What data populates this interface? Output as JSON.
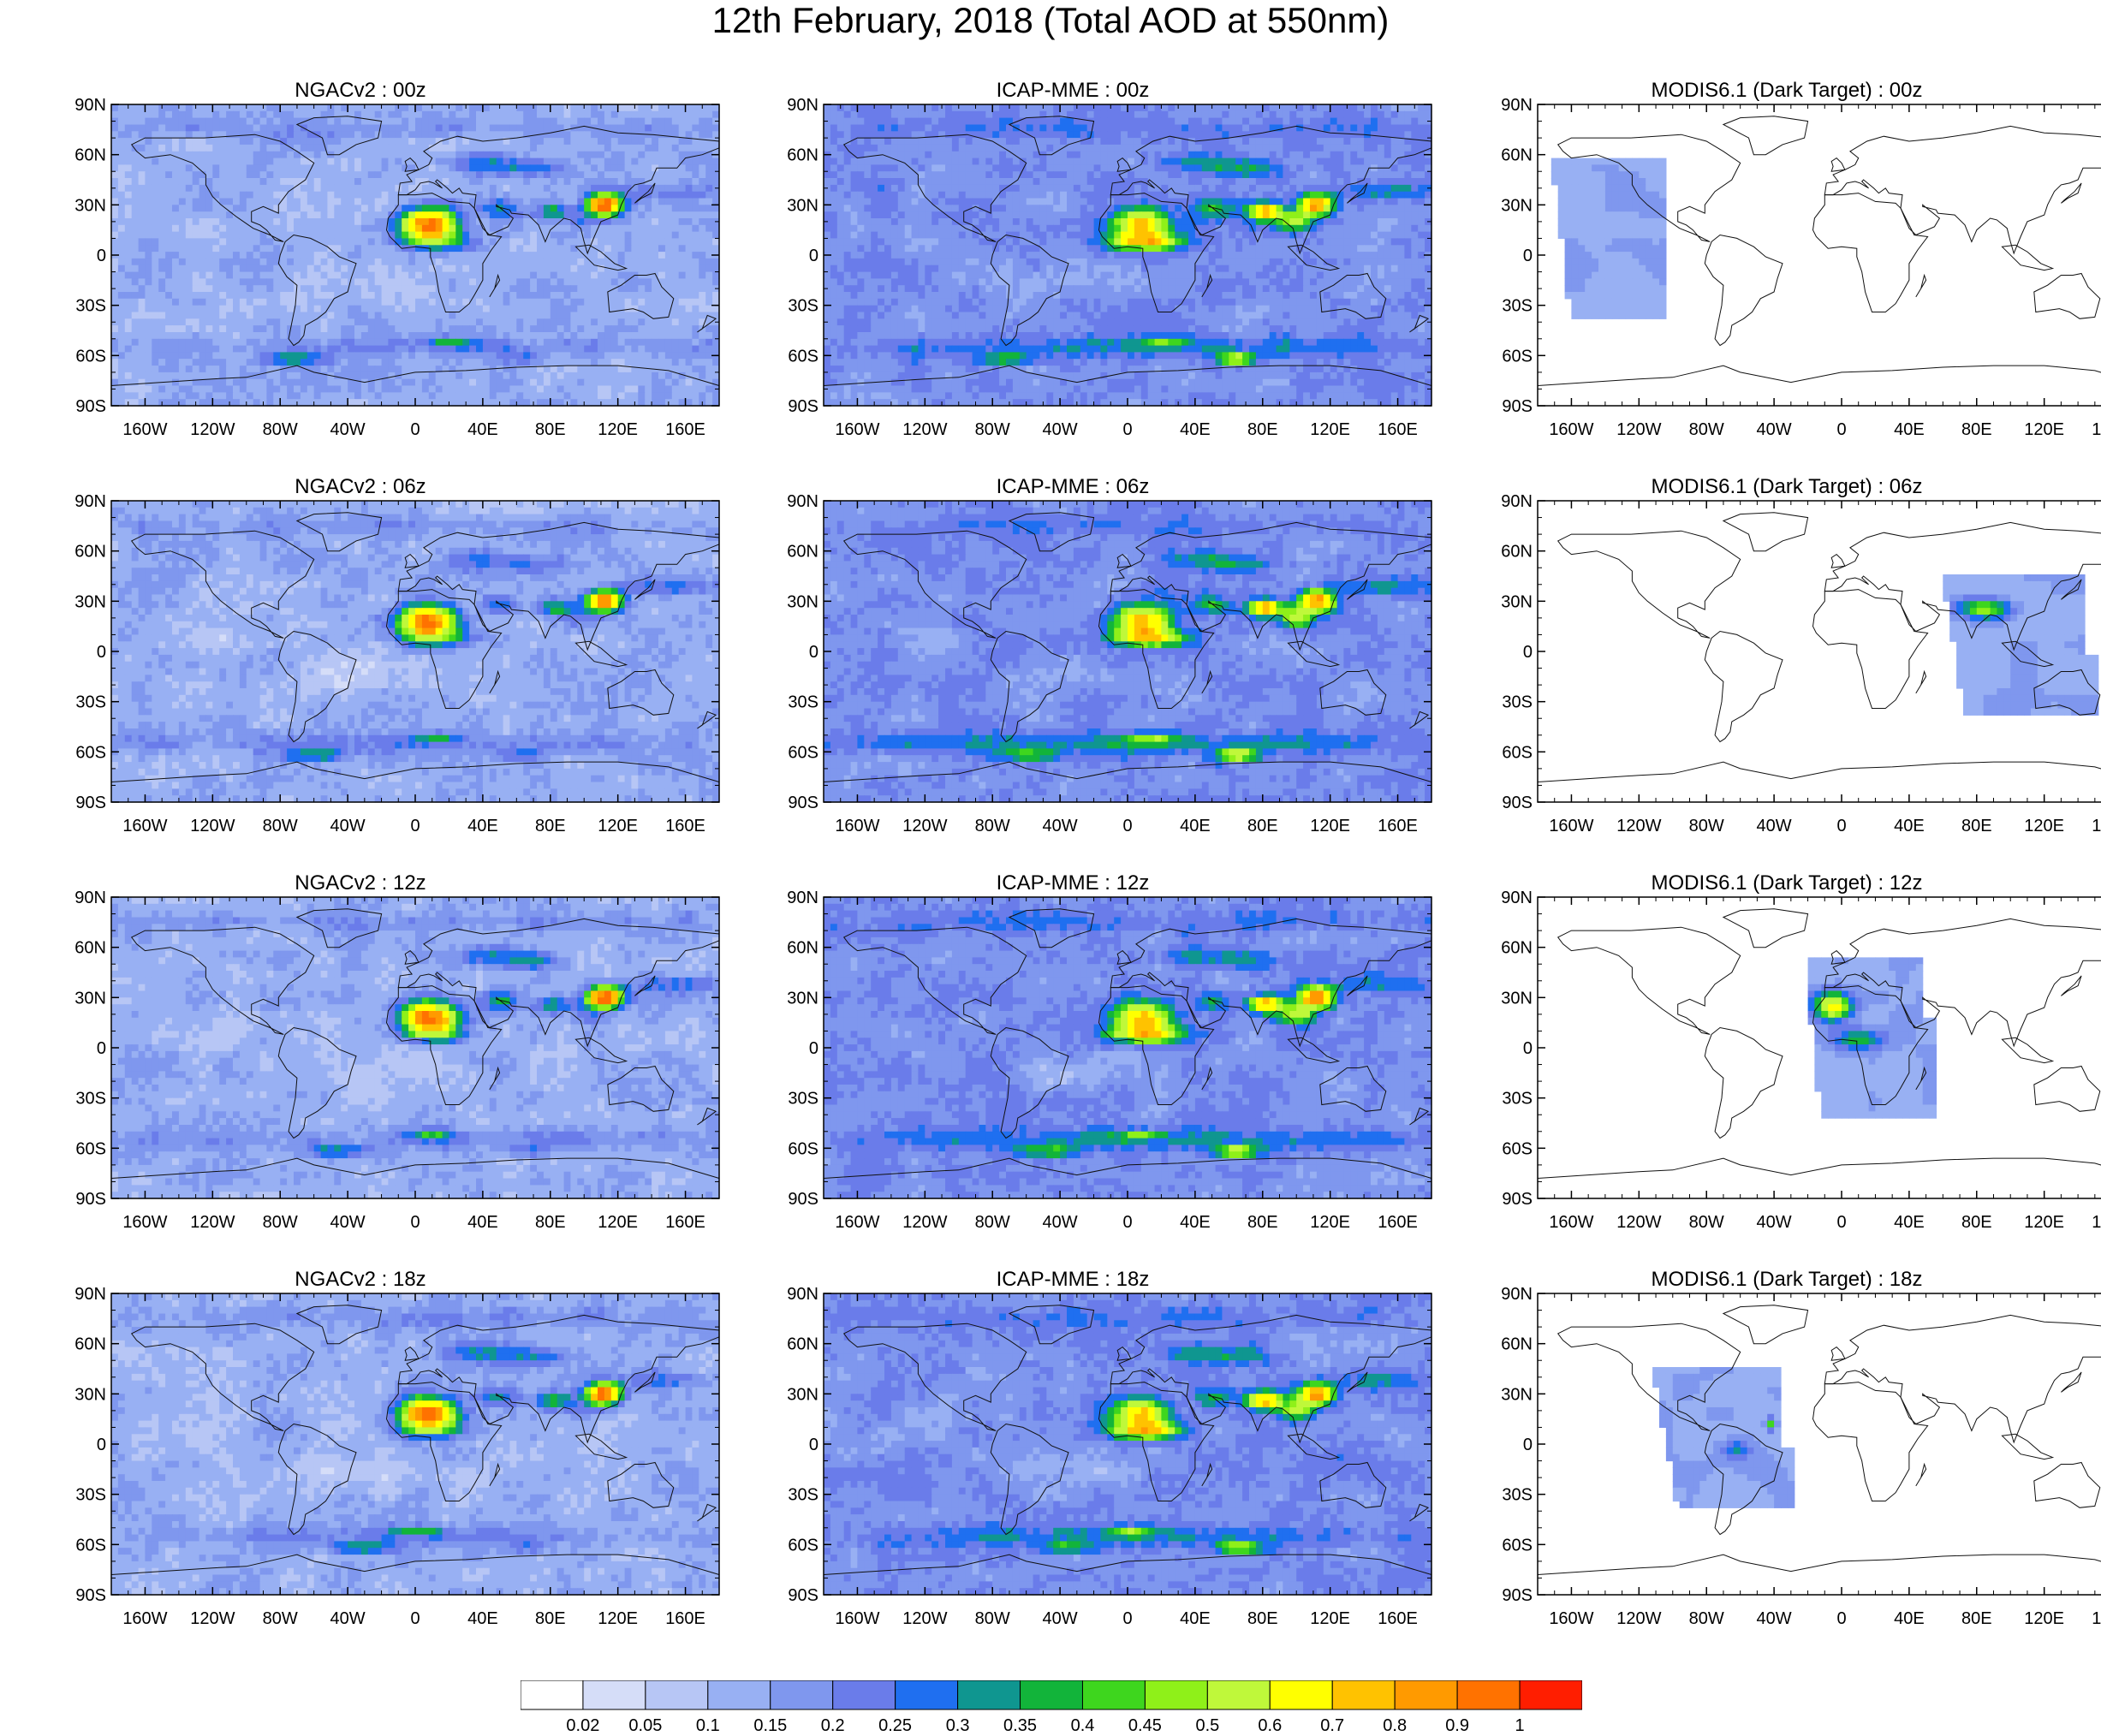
{
  "title": "12th February, 2018 (Total AOD at 550nm)",
  "lat_ticks": [
    "90N",
    "60N",
    "30N",
    "0",
    "30S",
    "60S",
    "90S"
  ],
  "lon_ticks": [
    "160W",
    "120W",
    "80W",
    "40W",
    "0",
    "40E",
    "80E",
    "120E",
    "160E"
  ],
  "lon_values": [
    -160,
    -120,
    -80,
    -40,
    0,
    40,
    80,
    120,
    160
  ],
  "lat_values": [
    90,
    60,
    30,
    0,
    -30,
    -60,
    -90
  ],
  "panels": [
    {
      "title": "NGACv2 : 00z",
      "model": "ngac",
      "hour": 0
    },
    {
      "title": "ICAP-MME : 00z",
      "model": "icap",
      "hour": 0
    },
    {
      "title": "MODIS6.1 (Dark Target) : 00z",
      "model": "modis",
      "hour": 0
    },
    {
      "title": "NGACv2 : 06z",
      "model": "ngac",
      "hour": 6
    },
    {
      "title": "ICAP-MME : 06z",
      "model": "icap",
      "hour": 6
    },
    {
      "title": "MODIS6.1 (Dark Target) : 06z",
      "model": "modis",
      "hour": 6
    },
    {
      "title": "NGACv2 : 12z",
      "model": "ngac",
      "hour": 12
    },
    {
      "title": "ICAP-MME : 12z",
      "model": "icap",
      "hour": 12
    },
    {
      "title": "MODIS6.1 (Dark Target) : 12z",
      "model": "modis",
      "hour": 12
    },
    {
      "title": "NGACv2 : 18z",
      "model": "ngac",
      "hour": 18
    },
    {
      "title": "ICAP-MME : 18z",
      "model": "icap",
      "hour": 18
    },
    {
      "title": "MODIS6.1 (Dark Target) : 18z",
      "model": "modis",
      "hour": 18
    }
  ],
  "colorbar": {
    "labels": [
      "0.02",
      "0.05",
      "0.1",
      "0.15",
      "0.2",
      "0.25",
      "0.3",
      "0.35",
      "0.4",
      "0.45",
      "0.5",
      "0.6",
      "0.7",
      "0.8",
      "0.9",
      "1"
    ],
    "colors": [
      "#ffffff",
      "#d5ddf8",
      "#b7c6f5",
      "#98b0f3",
      "#7f97ee",
      "#6a7cea",
      "#1f6ff0",
      "#0f9690",
      "#12b43a",
      "#3ed61e",
      "#8ff019",
      "#bff83a",
      "#ffff00",
      "#ffc200",
      "#ff9a00",
      "#ff7200",
      "#ff1e00"
    ]
  }
}
